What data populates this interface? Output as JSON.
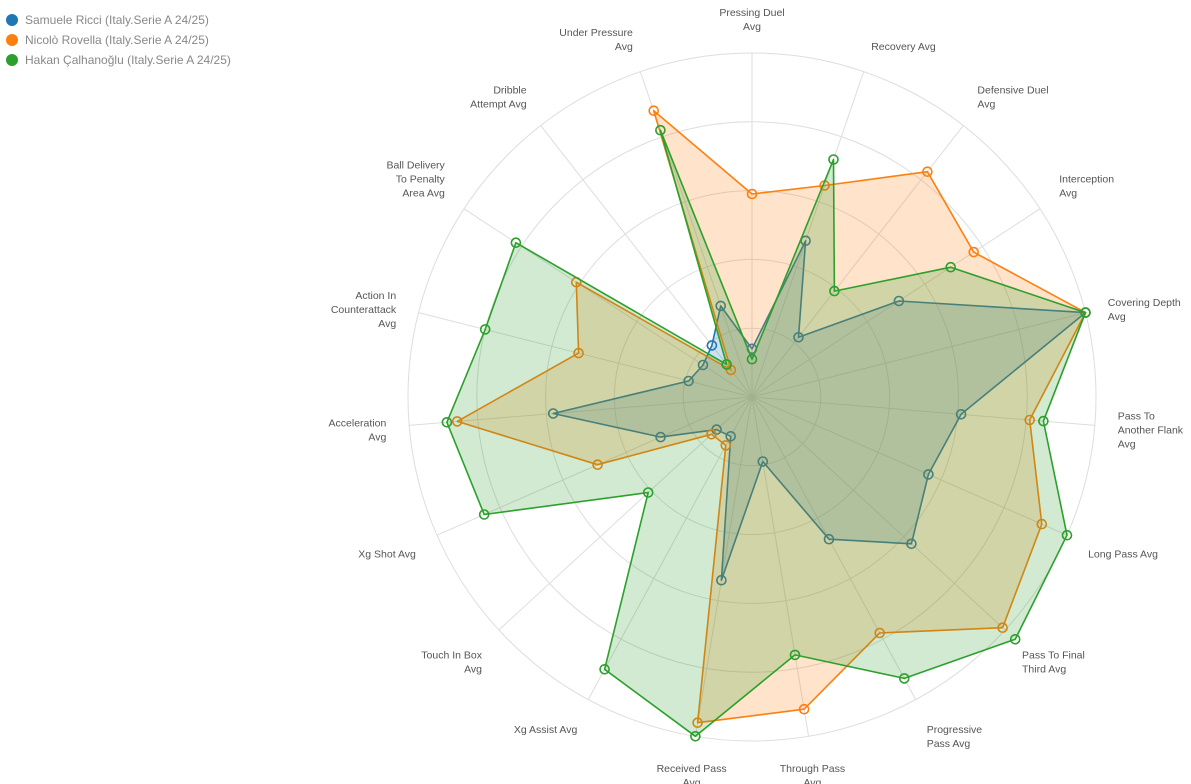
{
  "chart_data": {
    "type": "radar",
    "title": "",
    "axes": [
      [
        "Pressing Duel",
        "Avg"
      ],
      [
        "Recovery Avg"
      ],
      [
        "Defensive Duel",
        "Avg"
      ],
      [
        "Interception",
        "Avg"
      ],
      [
        "Covering Depth",
        "Avg"
      ],
      [
        "Pass To",
        "Another Flank",
        "Avg"
      ],
      [
        "Long Pass Avg"
      ],
      [
        "Pass To Final",
        "Third Avg"
      ],
      [
        "Progressive",
        "Pass Avg"
      ],
      [
        "Through Pass",
        "Avg"
      ],
      [
        "Received Pass",
        "Avg"
      ],
      [
        "Xg Assist Avg"
      ],
      [
        "Touch In Box",
        "Avg"
      ],
      [
        "Xg Shot Avg"
      ],
      [
        "Acceleration",
        "Avg"
      ],
      [
        "Action In",
        "Counterattack",
        "Avg"
      ],
      [
        "Ball Delivery",
        "To Penalty",
        "Area Avg"
      ],
      [
        "Dribble",
        "Attempt Avg"
      ],
      [
        "Under Pressure",
        "Avg"
      ]
    ],
    "rmax": 1.0,
    "grid_rings": 5,
    "grid": true,
    "legend_position": "top-left",
    "series": [
      {
        "name": "Samuele Ricci (Italy.Serie A 24/25)",
        "color": "#1f77b4",
        "values": [
          0.14,
          0.48,
          0.22,
          0.51,
          1.0,
          0.61,
          0.56,
          0.63,
          0.47,
          0.19,
          0.54,
          0.13,
          0.14,
          0.29,
          0.58,
          0.19,
          0.17,
          0.19,
          0.28
        ]
      },
      {
        "name": "Nicolò Rovella (Italy.Serie A 24/25)",
        "color": "#ff7f0e",
        "values": [
          0.59,
          0.65,
          0.83,
          0.77,
          1.0,
          0.81,
          0.92,
          0.99,
          0.78,
          0.92,
          0.96,
          0.16,
          0.16,
          0.49,
          0.86,
          0.52,
          0.61,
          0.1,
          0.88
        ]
      },
      {
        "name": "Hakan Çalhanoğlu (Italy.Serie A 24/25)",
        "color": "#2ca02c",
        "values": [
          0.11,
          0.73,
          0.39,
          0.69,
          1.0,
          0.85,
          1.0,
          1.04,
          0.93,
          0.76,
          1.0,
          0.9,
          0.41,
          0.85,
          0.89,
          0.8,
          0.82,
          0.12,
          0.82
        ]
      }
    ]
  }
}
